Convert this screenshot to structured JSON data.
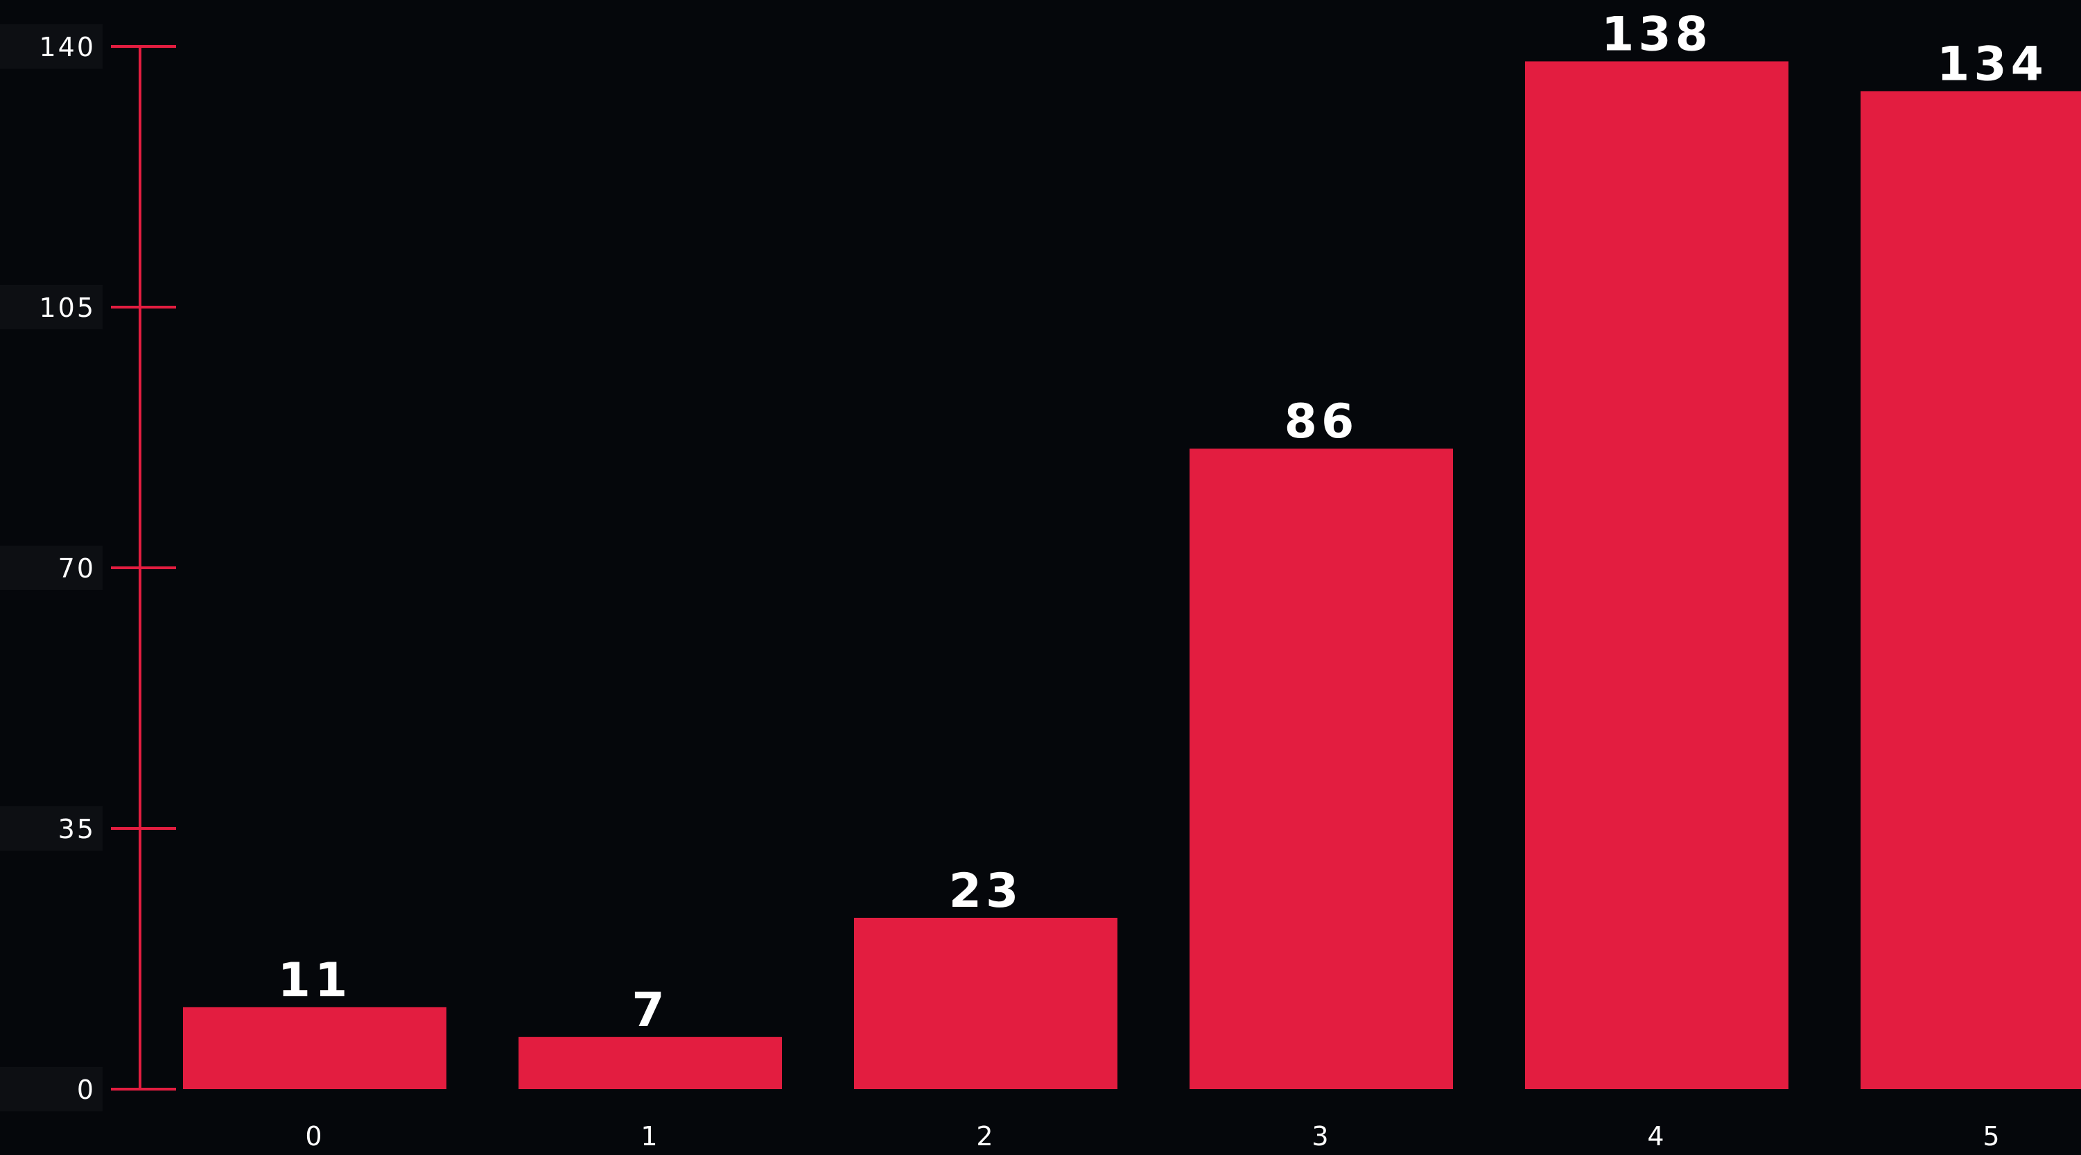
{
  "chart_data": {
    "type": "bar",
    "title": "",
    "xlabel": "",
    "ylabel": "",
    "categories": [
      "0",
      "1",
      "2",
      "3",
      "4",
      "5"
    ],
    "values": [
      11,
      7,
      23,
      86,
      138,
      134
    ],
    "data_labels": [
      "11",
      "7",
      "23",
      "86",
      "138",
      "134"
    ],
    "ylim": [
      0,
      140
    ],
    "y_ticks": [
      0,
      35,
      70,
      105,
      140
    ],
    "y_tick_labels": [
      "0",
      "35",
      "70",
      "105",
      "140"
    ],
    "grid": false,
    "legend": "none",
    "colors": {
      "background": "#05070b",
      "bar": "#e31d40",
      "axis": "#e31d40",
      "text": "#ffffff",
      "tick_label_bg": "#0d0f13"
    }
  }
}
